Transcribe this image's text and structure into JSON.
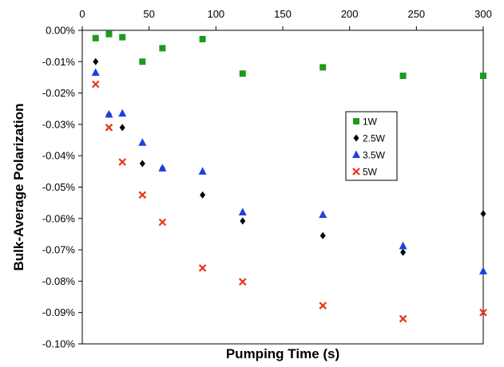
{
  "chart_data": {
    "type": "scatter",
    "title": "",
    "xlabel": "Pumping Time (s)",
    "ylabel": "Bulk-Average Polarization",
    "xlim": [
      0,
      300
    ],
    "ylim": [
      -0.1,
      0.0
    ],
    "x_ticks": [
      0,
      50,
      100,
      150,
      200,
      250,
      300
    ],
    "y_ticks": [
      0.0,
      -0.01,
      -0.02,
      -0.03,
      -0.04,
      -0.05,
      -0.06,
      -0.07,
      -0.08,
      -0.09,
      -0.1
    ],
    "x_tick_labels": [
      "0",
      "50",
      "100",
      "150",
      "200",
      "250",
      "300"
    ],
    "y_tick_labels": [
      "0.00%",
      "-0.01%",
      "-0.02%",
      "-0.03%",
      "-0.04%",
      "-0.05%",
      "-0.06%",
      "-0.07%",
      "-0.08%",
      "-0.09%",
      "-0.10%"
    ],
    "x_axis_position": "top",
    "grid": false,
    "legend_position": "right-center",
    "series": [
      {
        "name": "1W",
        "marker": "square",
        "color": "#1f9a1f",
        "x": [
          10,
          20,
          30,
          45,
          60,
          90,
          120,
          180,
          240,
          300
        ],
        "y": [
          -0.0025,
          -0.0012,
          -0.0022,
          -0.01,
          -0.0057,
          -0.0028,
          -0.0138,
          -0.0118,
          -0.0145,
          -0.0145
        ]
      },
      {
        "name": "2.5W",
        "marker": "diamond",
        "color": "#000000",
        "x": [
          10,
          20,
          30,
          45,
          60,
          90,
          120,
          180,
          240,
          300
        ],
        "y": [
          -0.01,
          -0.0268,
          -0.031,
          -0.0425,
          -0.044,
          -0.0525,
          -0.0608,
          -0.0655,
          -0.0708,
          -0.0585
        ]
      },
      {
        "name": "3.5W",
        "marker": "triangle",
        "color": "#1f3fe0",
        "x": [
          10,
          20,
          30,
          45,
          60,
          90,
          120,
          180,
          240,
          300
        ],
        "y": [
          -0.0135,
          -0.0268,
          -0.0265,
          -0.0358,
          -0.044,
          -0.045,
          -0.058,
          -0.0588,
          -0.0688,
          -0.0768
        ]
      },
      {
        "name": "5W",
        "marker": "x",
        "color": "#e8341c",
        "x": [
          10,
          20,
          30,
          45,
          60,
          90,
          120,
          180,
          240,
          300
        ],
        "y": [
          -0.0172,
          -0.031,
          -0.042,
          -0.0525,
          -0.0612,
          -0.0758,
          -0.0802,
          -0.0878,
          -0.092,
          -0.09
        ]
      }
    ]
  }
}
